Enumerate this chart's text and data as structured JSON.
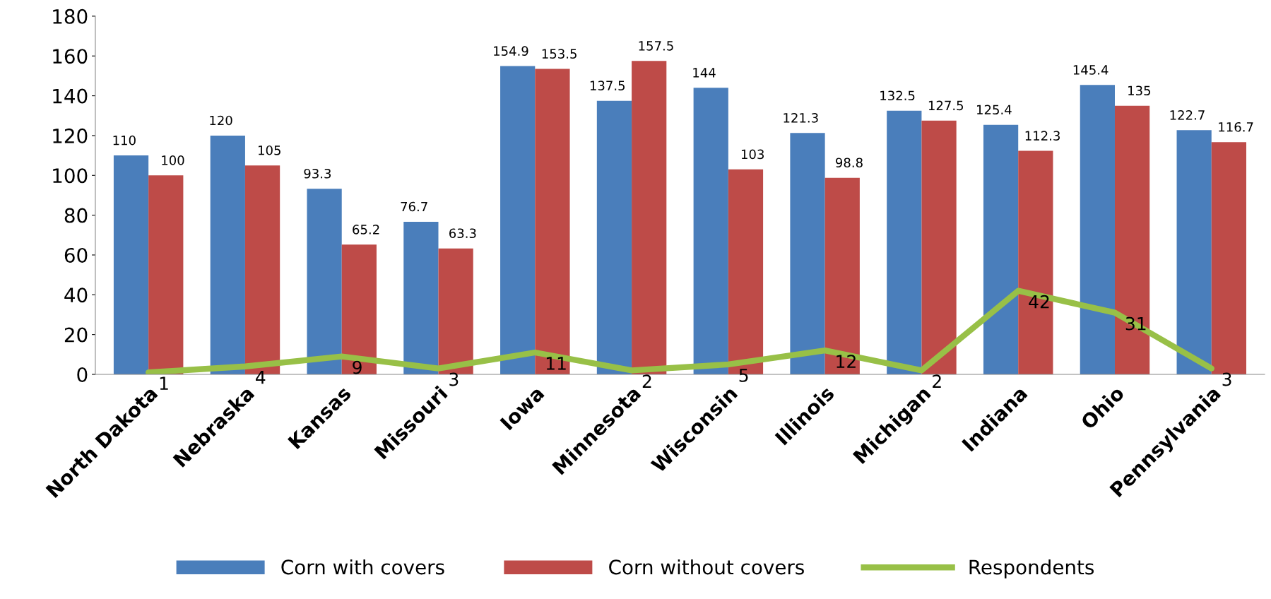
{
  "chart_data": {
    "type": "bar",
    "categories": [
      "North Dakota",
      "Nebraska",
      "Kansas",
      "Missouri",
      "Iowa",
      "Minnesota",
      "Wisconsin",
      "Illinois",
      "Michigan",
      "Indiana",
      "Ohio",
      "Pennsylvania"
    ],
    "series": [
      {
        "name": "Corn with covers",
        "color": "#4a7ebb",
        "values": [
          110,
          120,
          93.3,
          76.7,
          154.9,
          137.5,
          144,
          121.3,
          132.5,
          125.4,
          145.4,
          122.7
        ]
      },
      {
        "name": "Corn without covers",
        "color": "#be4b48",
        "values": [
          100,
          105,
          65.2,
          63.3,
          153.5,
          157.5,
          103,
          98.8,
          127.5,
          112.3,
          135,
          116.7
        ]
      },
      {
        "name": "Respondents",
        "type": "line",
        "color": "#98c047",
        "values": [
          1,
          4,
          9,
          3,
          11,
          2,
          5,
          12,
          2,
          42,
          31,
          3
        ]
      }
    ],
    "ylim": [
      0,
      180
    ],
    "yticks": [
      0,
      20,
      40,
      60,
      80,
      100,
      120,
      140,
      160,
      180
    ],
    "data_labels": true,
    "grid": false,
    "legend": "bottom",
    "marker": "none",
    "line_style": "solid"
  }
}
